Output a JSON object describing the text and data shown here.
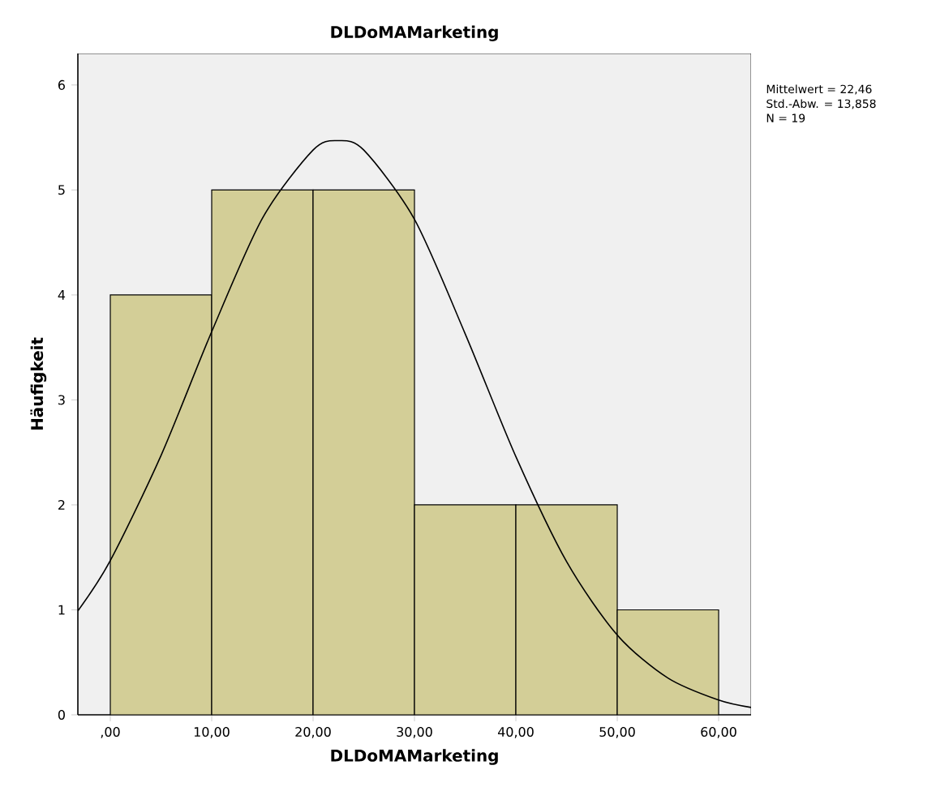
{
  "chart_data": {
    "type": "histogram",
    "title": "DLDoMAMarketing",
    "xlabel": "DLDoMAMarketing",
    "ylabel": "Häufigkeit",
    "bins": [
      0,
      10,
      20,
      30,
      40,
      50,
      60
    ],
    "values": [
      4,
      5,
      5,
      2,
      2,
      1
    ],
    "color": "#d3ce97",
    "series": [
      {
        "type": "line",
        "color": "#000000",
        "x": [
          -3.2,
          0,
          5,
          10,
          15,
          20,
          22.46,
          25,
          30,
          35,
          40,
          45,
          50,
          55,
          60,
          63.2
        ],
        "values": [
          0.99,
          1.47,
          2.47,
          3.65,
          4.73,
          5.38,
          5.47,
          5.38,
          4.72,
          3.63,
          2.46,
          1.46,
          0.76,
          0.35,
          0.14,
          0.07
        ]
      }
    ],
    "xlim": [
      -3.2,
      63.2
    ],
    "ylim": [
      0,
      6.3
    ],
    "xticks": [
      {
        "value": 0,
        "label": ",00"
      },
      {
        "value": 10,
        "label": "10,00"
      },
      {
        "value": 20,
        "label": "20,00"
      },
      {
        "value": 30,
        "label": "30,00"
      },
      {
        "value": 40,
        "label": "40,00"
      },
      {
        "value": 50,
        "label": "50,00"
      },
      {
        "value": 60,
        "label": "60,00"
      }
    ],
    "yticks": [
      0,
      1,
      2,
      3,
      4,
      5,
      6
    ],
    "annotations": [
      "Mittelwert = 22,46",
      "Std.-Abw. = 13,858",
      "N = 19"
    ],
    "grid": false
  }
}
